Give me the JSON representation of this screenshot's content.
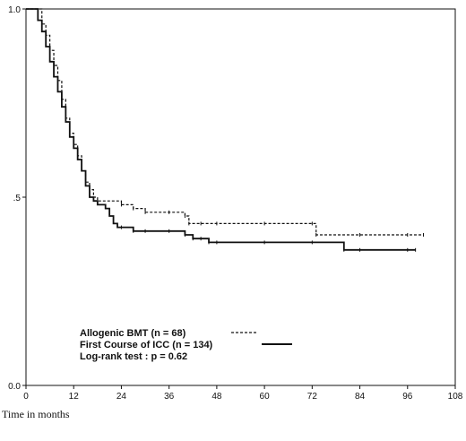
{
  "chart_data": {
    "type": "line",
    "title": "",
    "xlabel": "Time in months",
    "ylabel": "",
    "xlim": [
      0,
      108
    ],
    "ylim": [
      0,
      1
    ],
    "x_ticks": [
      0,
      12,
      24,
      36,
      48,
      60,
      72,
      84,
      96,
      108
    ],
    "x_tick_labels": [
      "0",
      "12",
      "24",
      "36",
      "48",
      "60",
      "72",
      "84",
      "96",
      "108"
    ],
    "y_ticks": [
      0,
      0.5,
      1
    ],
    "y_tick_labels": [
      "0.0",
      ".5",
      "1.0"
    ],
    "grid": false,
    "legend_position": "bottom-left",
    "legend_note": "Log-rank test : p = 0.62",
    "series": [
      {
        "name": "Allogenic BMT (n = 68)",
        "style": "dashed",
        "color": "#111111",
        "x": [
          0,
          3,
          4,
          5,
          6,
          7,
          8,
          9,
          10,
          11,
          12,
          13,
          14,
          15,
          16,
          17,
          18,
          24,
          27,
          30,
          36,
          40,
          41,
          44,
          48,
          60,
          72,
          73,
          84,
          96,
          100
        ],
        "y": [
          1.0,
          1.0,
          0.96,
          0.93,
          0.89,
          0.85,
          0.81,
          0.76,
          0.71,
          0.67,
          0.64,
          0.61,
          0.57,
          0.54,
          0.52,
          0.5,
          0.49,
          0.48,
          0.47,
          0.46,
          0.46,
          0.45,
          0.43,
          0.43,
          0.43,
          0.43,
          0.43,
          0.4,
          0.4,
          0.4,
          0.4
        ]
      },
      {
        "name": "First Course of ICC (n = 134)",
        "style": "solid",
        "color": "#111111",
        "x": [
          0,
          2,
          3,
          4,
          5,
          6,
          7,
          8,
          9,
          10,
          11,
          12,
          13,
          14,
          15,
          16,
          17,
          18,
          20,
          21,
          22,
          23,
          24,
          27,
          30,
          36,
          40,
          42,
          44,
          46,
          48,
          60,
          72,
          80,
          84,
          96,
          98
        ],
        "y": [
          1.0,
          1.0,
          0.97,
          0.94,
          0.9,
          0.86,
          0.82,
          0.78,
          0.74,
          0.7,
          0.66,
          0.63,
          0.6,
          0.57,
          0.53,
          0.5,
          0.49,
          0.48,
          0.47,
          0.45,
          0.43,
          0.42,
          0.42,
          0.41,
          0.41,
          0.41,
          0.4,
          0.39,
          0.39,
          0.38,
          0.38,
          0.38,
          0.38,
          0.36,
          0.36,
          0.36,
          0.36
        ]
      }
    ]
  }
}
